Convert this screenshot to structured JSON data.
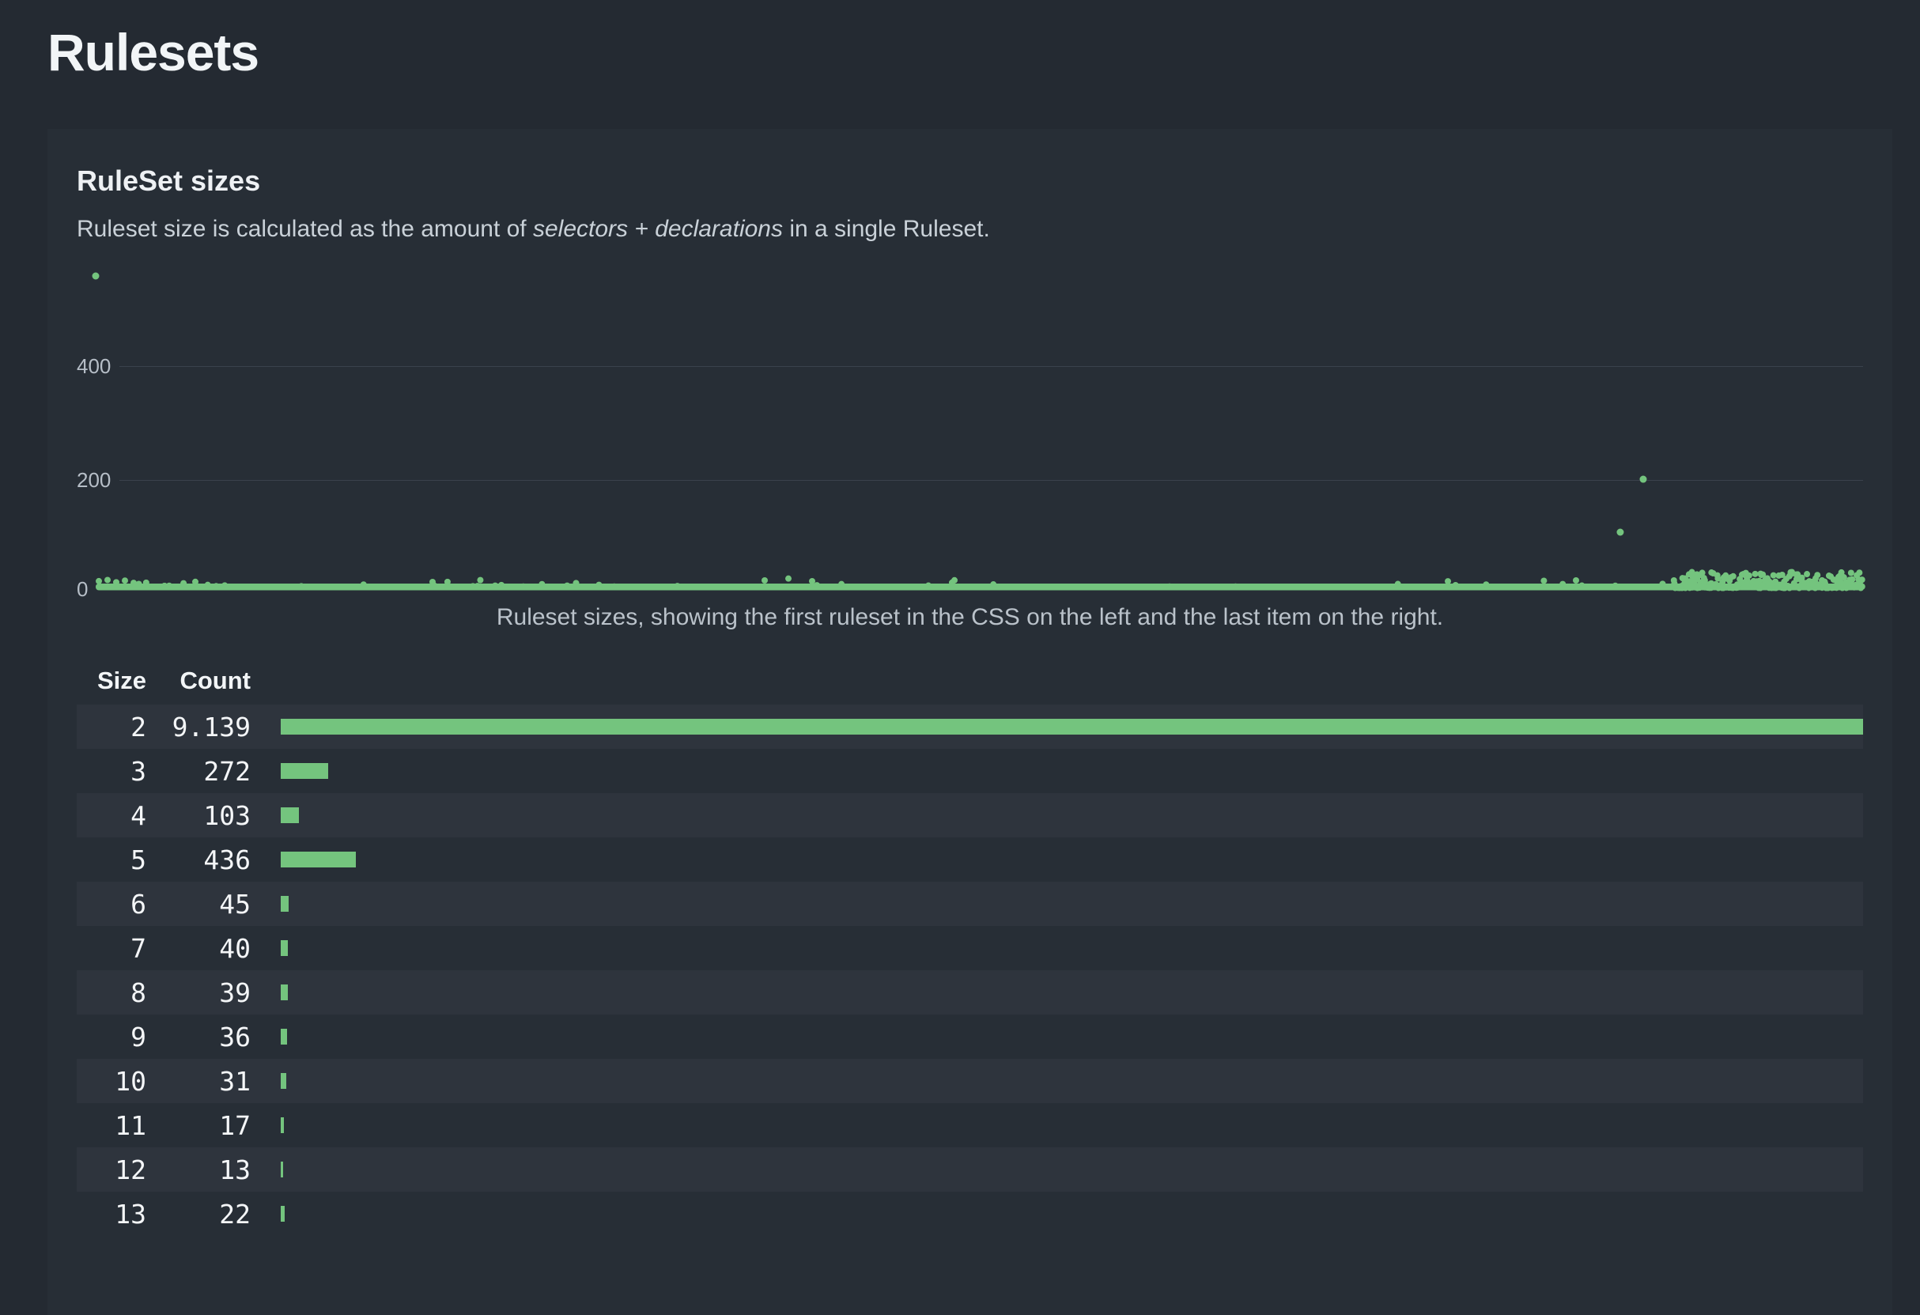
{
  "page": {
    "title": "Rulesets"
  },
  "card": {
    "title": "RuleSet sizes",
    "description": {
      "prefix": "Ruleset size is calculated as the amount of ",
      "italic": "selectors + declarations",
      "suffix": " in a single Ruleset."
    }
  },
  "chart_data": {
    "type": "scatter",
    "caption": "Ruleset sizes, showing the first ruleset in the CSS on the left and the last item on the right.",
    "x_meaning": "ruleset position in the CSS, first ruleset on the left, last on the right",
    "y_meaning": "ruleset size (selectors + declarations)",
    "ylim": [
      0,
      580
    ],
    "yticks": [
      "0",
      "200",
      "400"
    ],
    "grid": "horizontal gridlines at 200 and 400",
    "legend": "none",
    "point_color": "#74c47e",
    "baseline_band": {
      "value_range": [
        2,
        10
      ],
      "x_frac_start": 0,
      "x_frac_end": 1
    },
    "noise_bumps_max_value": 22,
    "dense_region": {
      "x_frac_start": 0.893,
      "x_frac_end": 1.0,
      "max_value": 28
    },
    "outliers": [
      {
        "x_frac": 0.0,
        "value": 550
      },
      {
        "x_frac": 0.863,
        "value": 100
      },
      {
        "x_frac": 0.876,
        "value": 193
      }
    ]
  },
  "table": {
    "headers": [
      "Size",
      "Count"
    ],
    "max_count": 9139,
    "rows": [
      {
        "size": "2",
        "count": "9.139",
        "value": 9139
      },
      {
        "size": "3",
        "count": "272",
        "value": 272
      },
      {
        "size": "4",
        "count": "103",
        "value": 103
      },
      {
        "size": "5",
        "count": "436",
        "value": 436
      },
      {
        "size": "6",
        "count": "45",
        "value": 45
      },
      {
        "size": "7",
        "count": "40",
        "value": 40
      },
      {
        "size": "8",
        "count": "39",
        "value": 39
      },
      {
        "size": "9",
        "count": "36",
        "value": 36
      },
      {
        "size": "10",
        "count": "31",
        "value": 31
      },
      {
        "size": "11",
        "count": "17",
        "value": 17
      },
      {
        "size": "12",
        "count": "13",
        "value": 13
      },
      {
        "size": "13",
        "count": "22",
        "value": 22
      }
    ]
  },
  "colors": {
    "accent_green": "#74c47e",
    "page_bg": "#242a32",
    "card_bg": "#272e36",
    "row_alt_bg": "#2e343d",
    "gridline": "#3a424c"
  }
}
